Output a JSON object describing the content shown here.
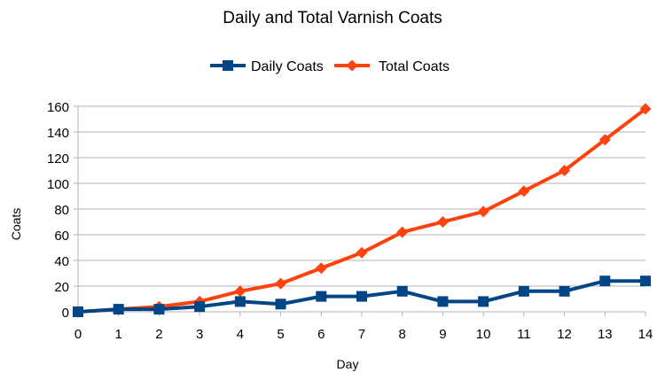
{
  "chart_data": {
    "type": "line",
    "title": "Daily and Total Varnish Coats",
    "xlabel": "Day",
    "ylabel": "Coats",
    "x": [
      0,
      1,
      2,
      3,
      4,
      5,
      6,
      7,
      8,
      9,
      10,
      11,
      12,
      13,
      14
    ],
    "xlim": [
      0,
      14
    ],
    "ylim": [
      0,
      160
    ],
    "y_ticks": [
      0,
      20,
      40,
      60,
      80,
      100,
      120,
      140,
      160
    ],
    "grid": "horizontal",
    "legend_position": "top",
    "series": [
      {
        "name": "Daily Coats",
        "color": "#004586",
        "marker": "square",
        "values": [
          0,
          2,
          2,
          4,
          8,
          6,
          12,
          12,
          16,
          8,
          8,
          16,
          16,
          24,
          24
        ]
      },
      {
        "name": "Total Coats",
        "color": "#ff420e",
        "marker": "diamond",
        "values": [
          0,
          2,
          4,
          8,
          16,
          22,
          34,
          46,
          62,
          70,
          78,
          94,
          110,
          134,
          158
        ]
      }
    ]
  }
}
